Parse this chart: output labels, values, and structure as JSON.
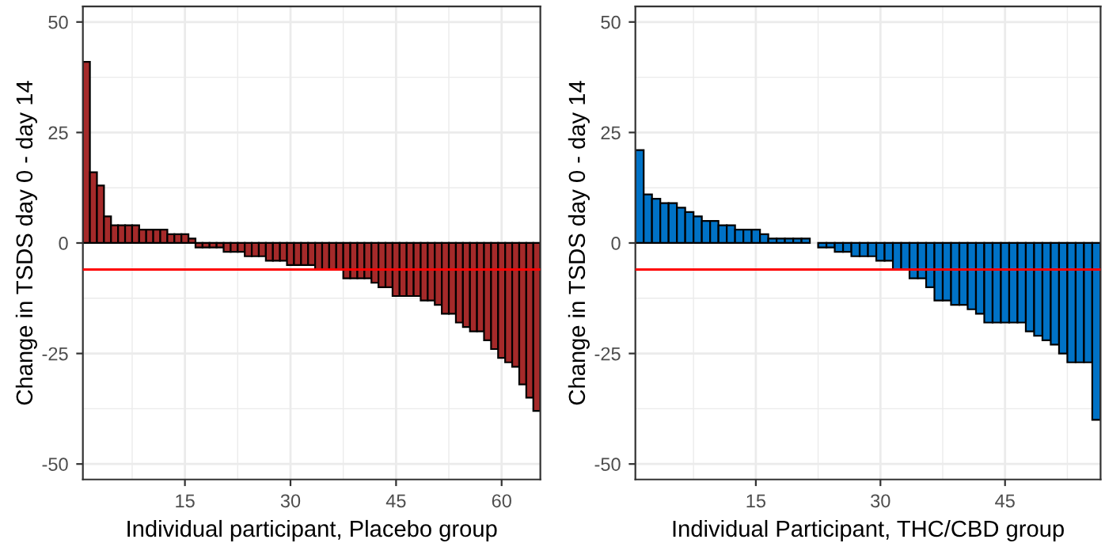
{
  "chart_data": [
    {
      "type": "bar",
      "xlabel": "Individual participant, Placebo group",
      "ylabel": "Change in TSDS day 0 - day 14",
      "x": [
        1,
        2,
        3,
        4,
        5,
        6,
        7,
        8,
        9,
        10,
        11,
        12,
        13,
        14,
        15,
        16,
        17,
        18,
        19,
        20,
        21,
        22,
        23,
        24,
        25,
        26,
        27,
        28,
        29,
        30,
        31,
        32,
        33,
        34,
        35,
        36,
        37,
        38,
        39,
        40,
        41,
        42,
        43,
        44,
        45,
        46,
        47,
        48,
        49,
        50,
        51,
        52,
        53,
        54,
        55,
        56,
        57,
        58,
        59,
        60,
        61,
        62,
        63,
        64,
        65
      ],
      "values": [
        41,
        16,
        13,
        6,
        4,
        4,
        4,
        4,
        3,
        3,
        3,
        3,
        2,
        2,
        2,
        1,
        -1,
        -1,
        -1,
        -1,
        -2,
        -2,
        -2,
        -3,
        -3,
        -3,
        -4,
        -4,
        -4,
        -5,
        -5,
        -5,
        -5,
        -6,
        -6,
        -6,
        -6,
        -8,
        -8,
        -8,
        -8,
        -9,
        -10,
        -10,
        -12,
        -12,
        -12,
        -12,
        -13,
        -13,
        -14,
        -16,
        -16,
        -18,
        -19,
        -20,
        -20,
        -22,
        -24,
        -26,
        -27,
        -28,
        -32,
        -35,
        -38
      ],
      "color": "#a52a2a",
      "xlim": [
        0.5,
        65.5
      ],
      "xticks": [
        15,
        30,
        45,
        60
      ],
      "ylim": [
        -53.5,
        53.5
      ],
      "yticks": [
        -50,
        -25,
        0,
        25,
        50
      ],
      "grid": true,
      "ref_lines": [
        {
          "axis": "y",
          "value": -6,
          "color": "#ff0000"
        }
      ]
    },
    {
      "type": "bar",
      "xlabel": "Individual Participant, THC/CBD group",
      "ylabel": "Change in TSDS day 0 - day 14",
      "x": [
        1,
        2,
        3,
        4,
        5,
        6,
        7,
        8,
        9,
        10,
        11,
        12,
        13,
        14,
        15,
        16,
        17,
        18,
        19,
        20,
        21,
        22,
        23,
        24,
        25,
        26,
        27,
        28,
        29,
        30,
        31,
        32,
        33,
        34,
        35,
        36,
        37,
        38,
        39,
        40,
        41,
        42,
        43,
        44,
        45,
        46,
        47,
        48,
        49,
        50,
        51,
        52,
        53,
        54,
        55,
        56
      ],
      "values": [
        21,
        11,
        10,
        9,
        9,
        8,
        7,
        6,
        5,
        5,
        4,
        4,
        3,
        3,
        3,
        2,
        1,
        1,
        1,
        1,
        1,
        null,
        -1,
        -1,
        -2,
        -2,
        -3,
        -3,
        -3,
        -4,
        -4,
        -6,
        -6,
        -8,
        -8,
        -10,
        -13,
        -13,
        -14,
        -14,
        -15,
        -16,
        -18,
        -18,
        -18,
        -18,
        -18,
        -20,
        -21,
        -22,
        -23,
        -25,
        -27,
        -27,
        -27,
        -40
      ],
      "color": "#0072c6",
      "xlim": [
        0.5,
        56.5
      ],
      "xticks": [
        15,
        30,
        45
      ],
      "ylim": [
        -53.5,
        53.5
      ],
      "yticks": [
        -50,
        -25,
        0,
        25,
        50
      ],
      "grid": true,
      "ref_lines": [
        {
          "axis": "y",
          "value": -6,
          "color": "#ff0000"
        }
      ]
    }
  ]
}
